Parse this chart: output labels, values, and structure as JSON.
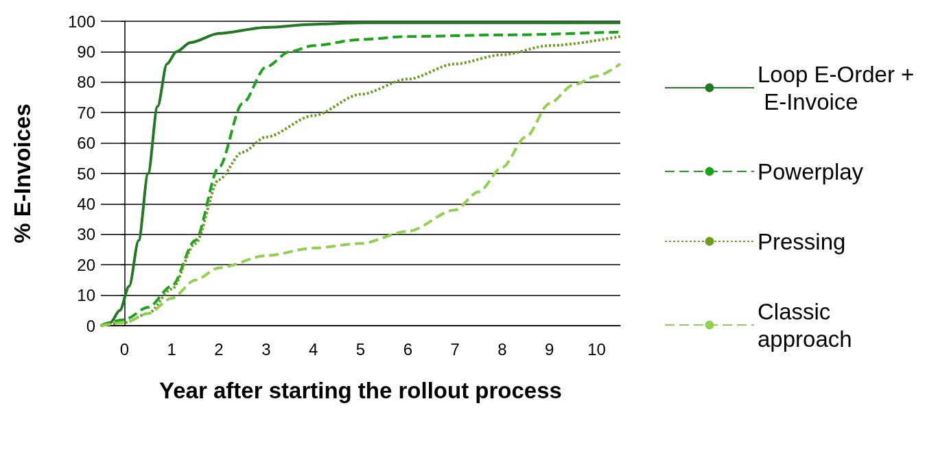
{
  "chart_data": {
    "type": "line",
    "xlabel": "Year after starting the rollout process",
    "ylabel": "% E-Invoices",
    "xlim": [
      -0.5,
      10.5
    ],
    "xticks": [
      0,
      1,
      2,
      3,
      4,
      5,
      6,
      7,
      8,
      9,
      10
    ],
    "ylim": [
      0,
      100
    ],
    "yticks": [
      0,
      10,
      20,
      30,
      40,
      50,
      60,
      70,
      80,
      90,
      100
    ],
    "grid": "y",
    "legend": "right",
    "marker": "none",
    "series": [
      {
        "name": "Loop E-Order + E-Invoice",
        "color": "#217a21",
        "line_style": "solid",
        "x": [
          -0.5,
          -0.3,
          -0.1,
          0.1,
          0.3,
          0.5,
          0.7,
          0.9,
          1.1,
          1.4,
          2,
          3,
          4,
          5,
          7,
          10.5
        ],
        "values": [
          0,
          1,
          5,
          13,
          28,
          50,
          72,
          86,
          90,
          93,
          96,
          98,
          99,
          99.5,
          99.5,
          99.5
        ]
      },
      {
        "name": "Powerplay",
        "color": "#1ca31c",
        "line_style": "dashed",
        "x": [
          -0.5,
          0,
          0.5,
          1,
          1.5,
          2,
          2.5,
          3,
          3.5,
          4,
          5,
          6,
          8,
          10.5
        ],
        "values": [
          0,
          2,
          6,
          13,
          28,
          52,
          73,
          85,
          90,
          92,
          94,
          95,
          95.5,
          96.5
        ]
      },
      {
        "name": "Pressing",
        "color": "#6b9e1f",
        "line_style": "dotted",
        "x": [
          -0.5,
          0,
          0.5,
          1,
          1.5,
          2,
          2.5,
          3,
          4,
          5,
          6,
          7,
          8,
          9,
          10.5
        ],
        "values": [
          0,
          1,
          4,
          12,
          27,
          48,
          57,
          62,
          69,
          76,
          81,
          86,
          89,
          92,
          95
        ]
      },
      {
        "name": "Classic approach",
        "color": "#92d050",
        "line_style": "dashed",
        "x": [
          -0.5,
          0,
          0.5,
          1,
          1.5,
          2,
          3,
          4,
          5,
          6,
          7,
          7.5,
          8,
          8.5,
          9,
          9.5,
          10,
          10.5
        ],
        "values": [
          0,
          1,
          4,
          9,
          15,
          19,
          23,
          25.5,
          27,
          31,
          38,
          44,
          52,
          62,
          73,
          79,
          82,
          86
        ]
      }
    ]
  }
}
